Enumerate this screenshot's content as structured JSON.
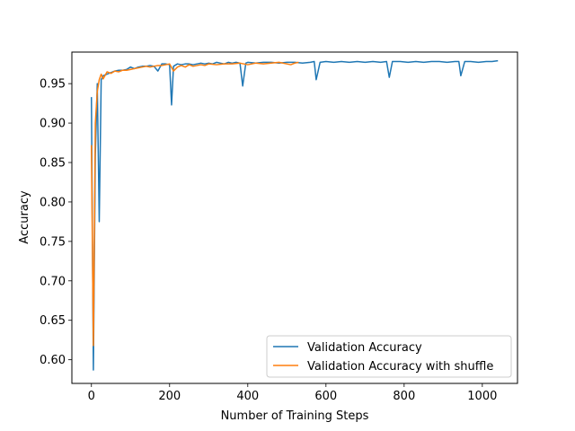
{
  "chart_data": {
    "type": "line",
    "xlabel": "Number of Training Steps",
    "ylabel": "Accuracy",
    "xlim": [
      -50,
      1090
    ],
    "ylim": [
      0.57,
      0.99
    ],
    "xticks": [
      0,
      200,
      400,
      600,
      800,
      1000
    ],
    "yticks": [
      0.6,
      0.65,
      0.7,
      0.75,
      0.8,
      0.85,
      0.9,
      0.95
    ],
    "xtick_labels": [
      "0",
      "200",
      "400",
      "600",
      "800",
      "1000"
    ],
    "ytick_labels": [
      "0.60",
      "0.65",
      "0.70",
      "0.75",
      "0.80",
      "0.85",
      "0.90",
      "0.95"
    ],
    "grid": false,
    "legend_position": "lower-right",
    "series": [
      {
        "name": "Validation Accuracy",
        "color": "#1f77b4",
        "points": [
          [
            0,
            0.933
          ],
          [
            5,
            0.587
          ],
          [
            10,
            0.86
          ],
          [
            15,
            0.95
          ],
          [
            20,
            0.775
          ],
          [
            25,
            0.955
          ],
          [
            30,
            0.96
          ],
          [
            40,
            0.962
          ],
          [
            50,
            0.964
          ],
          [
            60,
            0.966
          ],
          [
            70,
            0.967
          ],
          [
            80,
            0.967
          ],
          [
            90,
            0.968
          ],
          [
            100,
            0.971
          ],
          [
            110,
            0.969
          ],
          [
            120,
            0.971
          ],
          [
            130,
            0.972
          ],
          [
            140,
            0.972
          ],
          [
            150,
            0.973
          ],
          [
            160,
            0.972
          ],
          [
            170,
            0.966
          ],
          [
            180,
            0.975
          ],
          [
            190,
            0.975
          ],
          [
            200,
            0.974
          ],
          [
            205,
            0.923
          ],
          [
            210,
            0.972
          ],
          [
            220,
            0.975
          ],
          [
            230,
            0.974
          ],
          [
            240,
            0.975
          ],
          [
            250,
            0.975
          ],
          [
            260,
            0.974
          ],
          [
            270,
            0.975
          ],
          [
            280,
            0.976
          ],
          [
            290,
            0.975
          ],
          [
            300,
            0.976
          ],
          [
            310,
            0.975
          ],
          [
            320,
            0.977
          ],
          [
            330,
            0.976
          ],
          [
            340,
            0.975
          ],
          [
            350,
            0.977
          ],
          [
            360,
            0.976
          ],
          [
            370,
            0.977
          ],
          [
            380,
            0.976
          ],
          [
            387,
            0.947
          ],
          [
            395,
            0.976
          ],
          [
            400,
            0.977
          ],
          [
            420,
            0.976
          ],
          [
            440,
            0.977
          ],
          [
            460,
            0.977
          ],
          [
            480,
            0.976
          ],
          [
            500,
            0.977
          ],
          [
            520,
            0.977
          ],
          [
            540,
            0.976
          ],
          [
            560,
            0.977
          ],
          [
            570,
            0.978
          ],
          [
            575,
            0.955
          ],
          [
            585,
            0.977
          ],
          [
            600,
            0.978
          ],
          [
            620,
            0.977
          ],
          [
            640,
            0.978
          ],
          [
            660,
            0.977
          ],
          [
            680,
            0.978
          ],
          [
            700,
            0.977
          ],
          [
            720,
            0.978
          ],
          [
            740,
            0.977
          ],
          [
            755,
            0.978
          ],
          [
            762,
            0.958
          ],
          [
            770,
            0.978
          ],
          [
            790,
            0.978
          ],
          [
            810,
            0.977
          ],
          [
            830,
            0.978
          ],
          [
            850,
            0.977
          ],
          [
            870,
            0.978
          ],
          [
            890,
            0.978
          ],
          [
            910,
            0.977
          ],
          [
            930,
            0.978
          ],
          [
            940,
            0.978
          ],
          [
            945,
            0.96
          ],
          [
            955,
            0.978
          ],
          [
            970,
            0.978
          ],
          [
            990,
            0.977
          ],
          [
            1010,
            0.978
          ],
          [
            1025,
            0.978
          ],
          [
            1040,
            0.979
          ]
        ]
      },
      {
        "name": "Validation Accuracy with shuffle",
        "color": "#ff7f0e",
        "points": [
          [
            0,
            0.872
          ],
          [
            5,
            0.618
          ],
          [
            10,
            0.9
          ],
          [
            15,
            0.94
          ],
          [
            20,
            0.955
          ],
          [
            25,
            0.962
          ],
          [
            30,
            0.956
          ],
          [
            40,
            0.965
          ],
          [
            50,
            0.963
          ],
          [
            60,
            0.966
          ],
          [
            70,
            0.965
          ],
          [
            80,
            0.967
          ],
          [
            90,
            0.967
          ],
          [
            100,
            0.968
          ],
          [
            110,
            0.969
          ],
          [
            120,
            0.97
          ],
          [
            130,
            0.971
          ],
          [
            140,
            0.972
          ],
          [
            150,
            0.971
          ],
          [
            160,
            0.972
          ],
          [
            170,
            0.973
          ],
          [
            180,
            0.973
          ],
          [
            190,
            0.974
          ],
          [
            200,
            0.975
          ],
          [
            210,
            0.966
          ],
          [
            220,
            0.971
          ],
          [
            230,
            0.973
          ],
          [
            240,
            0.971
          ],
          [
            250,
            0.974
          ],
          [
            260,
            0.972
          ],
          [
            270,
            0.973
          ],
          [
            280,
            0.974
          ],
          [
            290,
            0.973
          ],
          [
            300,
            0.975
          ],
          [
            320,
            0.974
          ],
          [
            340,
            0.975
          ],
          [
            360,
            0.975
          ],
          [
            380,
            0.976
          ],
          [
            400,
            0.974
          ],
          [
            420,
            0.976
          ],
          [
            440,
            0.975
          ],
          [
            460,
            0.976
          ],
          [
            480,
            0.977
          ],
          [
            500,
            0.975
          ],
          [
            510,
            0.974
          ],
          [
            520,
            0.976
          ],
          [
            530,
            0.977
          ]
        ]
      }
    ]
  }
}
